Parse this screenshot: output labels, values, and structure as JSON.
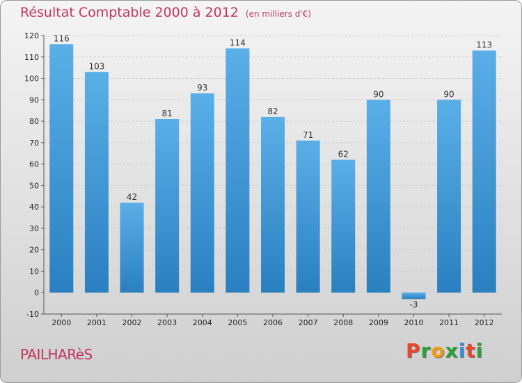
{
  "header": {
    "title": "Résultat Comptable 2000 à 2012",
    "unit": "(en milliers d'€)"
  },
  "footer": {
    "city": "PAILHARèS",
    "logo_letters": [
      "P",
      "r",
      "o",
      "x",
      "i",
      "t",
      "i"
    ]
  },
  "colors": {
    "accent": "#c0355e",
    "bar_top": "#5aafe8",
    "bar_bottom": "#2a7fc0",
    "logo": [
      "#e8472b",
      "#2ea03a",
      "#f39c12",
      "#2ea03a",
      "#3d8fd8",
      "#e8472b",
      "#2ea03a"
    ]
  },
  "chart_data": {
    "type": "bar",
    "title": "Résultat Comptable 2000 à 2012",
    "subtitle": "(en milliers d'€)",
    "xlabel": "",
    "ylabel": "",
    "categories": [
      "2000",
      "2001",
      "2002",
      "2003",
      "2004",
      "2005",
      "2006",
      "2007",
      "2008",
      "2009",
      "2010",
      "2011",
      "2012"
    ],
    "values": [
      116,
      103,
      42,
      81,
      93,
      114,
      82,
      71,
      62,
      90,
      -3,
      90,
      113
    ],
    "ylim": [
      -10,
      120
    ],
    "yticks": [
      -10,
      0,
      10,
      20,
      30,
      40,
      50,
      60,
      70,
      80,
      90,
      100,
      110,
      120
    ],
    "grid": true
  }
}
